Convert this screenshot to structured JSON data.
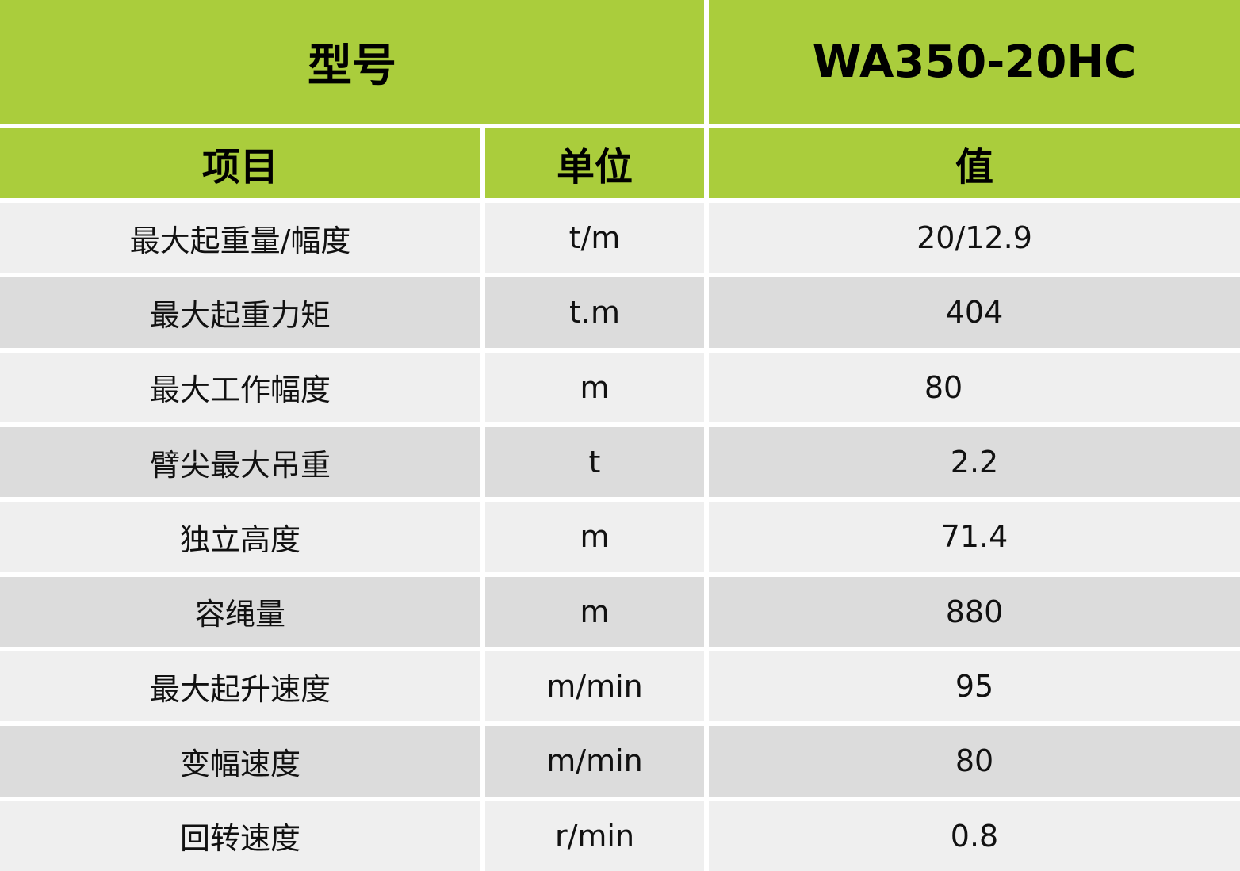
{
  "header": {
    "model_label": "型号",
    "model_value": "WA350-20HC"
  },
  "columns": {
    "item": "项目",
    "unit": "单位",
    "value": "值"
  },
  "rows": [
    {
      "item": "最大起重量/幅度",
      "unit": "t/m",
      "value": "20/12.9"
    },
    {
      "item": "最大起重力矩",
      "unit": "t.m",
      "value": "404"
    },
    {
      "item": "最大工作幅度",
      "unit": "m",
      "value": "80"
    },
    {
      "item": "臂尖最大吊重",
      "unit": "t",
      "value": "2.2"
    },
    {
      "item": "独立高度",
      "unit": "m",
      "value": "71.4"
    },
    {
      "item": "容绳量",
      "unit": "m",
      "value": "880"
    },
    {
      "item": "最大起升速度",
      "unit": "m/min",
      "value": "95"
    },
    {
      "item": "变幅速度",
      "unit": "m/min",
      "value": "80"
    },
    {
      "item": "回转速度",
      "unit": "r/min",
      "value": "0.8"
    }
  ],
  "colors": {
    "header_green": "#aacd3c",
    "row_light": "#efefef",
    "row_dark": "#dcdcdc"
  }
}
